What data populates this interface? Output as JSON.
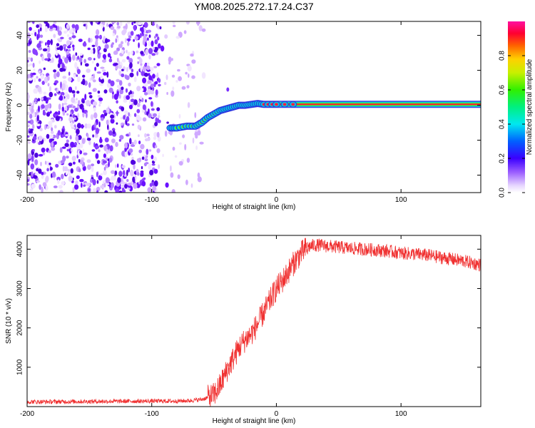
{
  "title": "YM08.2025.272.17.24.C37",
  "chart_data": [
    {
      "type": "heatmap",
      "xlabel": "Height of straight line (km)",
      "ylabel": "Frequency (Hz)",
      "xlim": [
        -200,
        164
      ],
      "ylim": [
        -50,
        48
      ],
      "xticks": [
        -200,
        -100,
        0,
        100
      ],
      "yticks": [
        -40,
        -20,
        0,
        20,
        40
      ],
      "colorbar": {
        "label": "Normalized spectral amplitude",
        "range": [
          0,
          1
        ],
        "ticks": [
          0.0,
          0.2,
          0.4,
          0.6,
          0.8
        ]
      },
      "noise_region_x": [
        -200,
        -58
      ],
      "ridge": {
        "x": [
          -85,
          -80,
          -72,
          -65,
          -60,
          -55,
          -50,
          -45,
          -40,
          -35,
          -30,
          -25,
          -20,
          -15,
          -10,
          0,
          20,
          50,
          100,
          164
        ],
        "y": [
          -13,
          -13,
          -12,
          -12,
          -10,
          -7,
          -5,
          -3,
          -2,
          -1,
          0,
          0,
          0.5,
          1,
          0.5,
          0.5,
          0.5,
          0.5,
          0.5,
          0.5
        ]
      },
      "grid": false
    },
    {
      "type": "line",
      "xlabel": "Height of straight line (km)",
      "ylabel": "SNR (10 * v/v)",
      "xlim": [
        -200,
        164
      ],
      "ylim": [
        0,
        4350
      ],
      "xticks": [
        -200,
        -100,
        0,
        100
      ],
      "yticks": [
        1000,
        2000,
        3000,
        4000
      ],
      "color": "#f03030",
      "series": [
        {
          "x": [
            -200,
            -150,
            -100,
            -80,
            -70,
            -60,
            -55,
            -50,
            -45,
            -40,
            -35,
            -30,
            -25,
            -20,
            -15,
            -10,
            -5,
            0,
            5,
            10,
            15,
            20,
            25,
            30,
            35,
            40,
            50,
            60,
            70,
            80,
            90,
            100,
            110,
            120,
            130,
            140,
            150,
            164
          ],
          "values": [
            120,
            130,
            140,
            140,
            150,
            180,
            230,
            300,
            550,
            900,
            1200,
            1500,
            1700,
            1850,
            2100,
            2400,
            2700,
            3000,
            3200,
            3450,
            3700,
            3900,
            4050,
            4100,
            4100,
            4080,
            4050,
            4020,
            4000,
            3980,
            3950,
            3900,
            3880,
            3850,
            3800,
            3750,
            3700,
            3600
          ]
        }
      ],
      "grid": false
    }
  ]
}
